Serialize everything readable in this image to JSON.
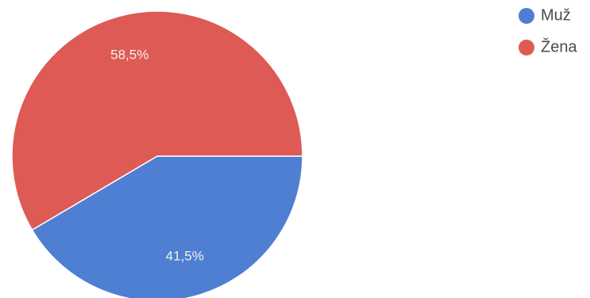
{
  "chart_data": {
    "type": "pie",
    "slices": [
      {
        "label": "Muž",
        "value": 41.5,
        "display": "41,5%",
        "color": "#4f7fd3"
      },
      {
        "label": "Žena",
        "value": 58.5,
        "display": "58,5%",
        "color": "#de5b55"
      }
    ],
    "start": "3 o'clock",
    "direction": "clockwise",
    "legend_position": "top-right"
  }
}
